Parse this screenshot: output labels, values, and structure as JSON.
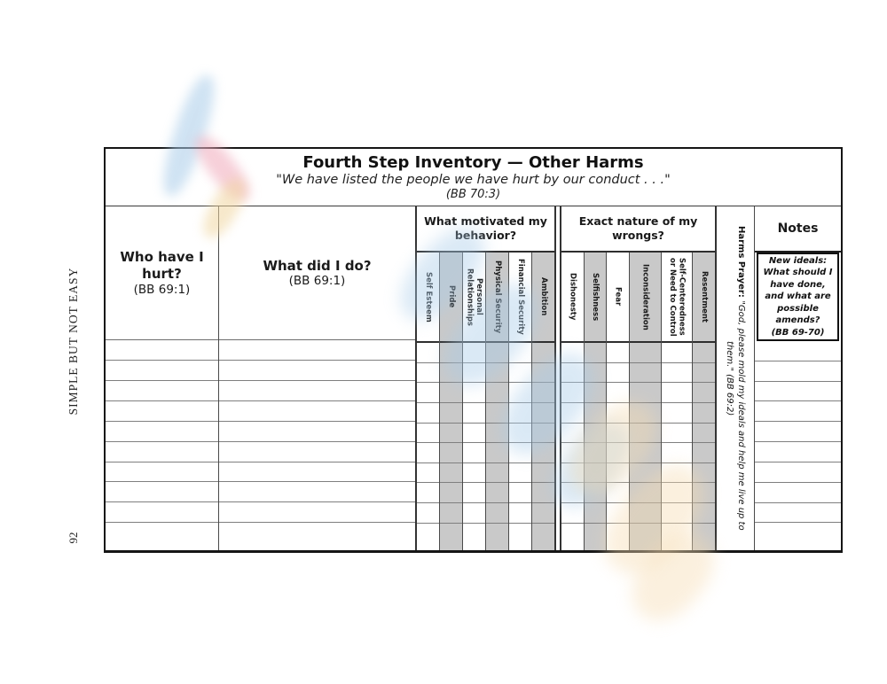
{
  "page": {
    "side_label": "SIMPLE BUT NOT EASY",
    "page_number": "92"
  },
  "table": {
    "title": "Fourth Step Inventory — Other Harms",
    "subtitle": "\"We have listed the people we have hurt by our conduct . . .\"",
    "subtitle_ref": "(BB 70:3)",
    "body_rows": 10,
    "columns": {
      "who": {
        "label": "Who have I hurt?",
        "ref": "(BB 69:1)"
      },
      "what": {
        "label": "What did I do?",
        "ref": "(BB 69:1)"
      },
      "motivated": {
        "label": "What motivated my behavior?",
        "items": [
          {
            "label": "Self Esteem",
            "shaded": false
          },
          {
            "label": "Pride",
            "shaded": true
          },
          {
            "label": "Personal Relationships",
            "shaded": false
          },
          {
            "label": "Physical Security",
            "shaded": true
          },
          {
            "label": "Financial Security",
            "shaded": false
          },
          {
            "label": "Ambition",
            "shaded": true
          }
        ]
      },
      "wrongs": {
        "label": "Exact nature of my wrongs?",
        "items": [
          {
            "label": "Dishonesty",
            "shaded": false
          },
          {
            "label": "Selfishness",
            "shaded": true
          },
          {
            "label": "Fear",
            "shaded": false
          },
          {
            "label": "Inconsideration",
            "shaded": true
          },
          {
            "label": "Self-Centeredness or Need to Control",
            "shaded": false
          },
          {
            "label": "Resentment",
            "shaded": true
          }
        ]
      },
      "harms_prayer": {
        "label": "Harms Prayer:",
        "prayer": "\"God, please mold my ideals and help me live up to them.\"  (BB 69:2)"
      },
      "notes": {
        "label": "Notes",
        "hint": "New ideals: What should I have done, and what are possible amends?",
        "hint_ref": "(BB 69-70)"
      }
    }
  },
  "colors": {
    "shaded_column": "#c9c9c9",
    "grid_line": "#7f7f7f",
    "outer_border": "#151515",
    "watermark_blue": "#a9cce9",
    "watermark_pink": "#f0a9ba",
    "watermark_yellow": "#f0d6a0",
    "watermark_orange": "#f6dcb2"
  }
}
